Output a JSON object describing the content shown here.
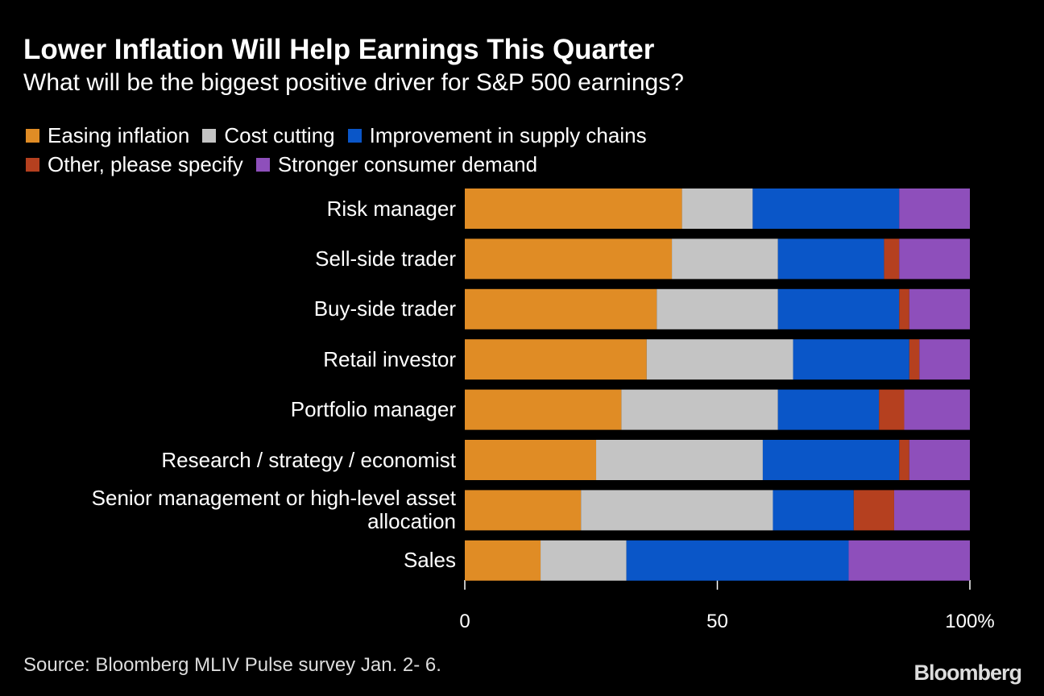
{
  "chart_data": {
    "type": "bar",
    "orientation": "horizontal",
    "stacked": true,
    "title": "Lower Inflation Will Help Earnings This Quarter",
    "subtitle": "What will be the biggest positive driver for S&P 500 earnings?",
    "categories": [
      "Risk manager",
      "Sell-side trader",
      "Buy-side trader",
      "Retail investor",
      "Portfolio manager",
      "Research / strategy / economist",
      "Senior management or high-level asset allocation",
      "Sales"
    ],
    "series": [
      {
        "name": "Easing inflation",
        "color": "#e08c25",
        "values": [
          43,
          41,
          38,
          36,
          31,
          26,
          23,
          15
        ]
      },
      {
        "name": "Cost cutting",
        "color": "#c4c4c4",
        "values": [
          14,
          21,
          24,
          29,
          31,
          33,
          38,
          17
        ]
      },
      {
        "name": "Improvement in supply chains",
        "color": "#0a56c8",
        "values": [
          29,
          21,
          24,
          23,
          20,
          27,
          16,
          44
        ]
      },
      {
        "name": "Other, please specify",
        "color": "#b5401f",
        "values": [
          0,
          3,
          2,
          2,
          5,
          2,
          8,
          0
        ]
      },
      {
        "name": "Stronger consumer demand",
        "color": "#8e4fbb",
        "values": [
          14,
          14,
          12,
          10,
          13,
          12,
          15,
          24
        ]
      }
    ],
    "xlim": [
      0,
      100
    ],
    "xticks": [
      0,
      50,
      {
        "value": 100,
        "label": "100%"
      }
    ],
    "grid": false
  },
  "footer": {
    "source": "Source: Bloomberg MLIV Pulse survey Jan. 2- 6.",
    "brand": "Bloomberg"
  }
}
